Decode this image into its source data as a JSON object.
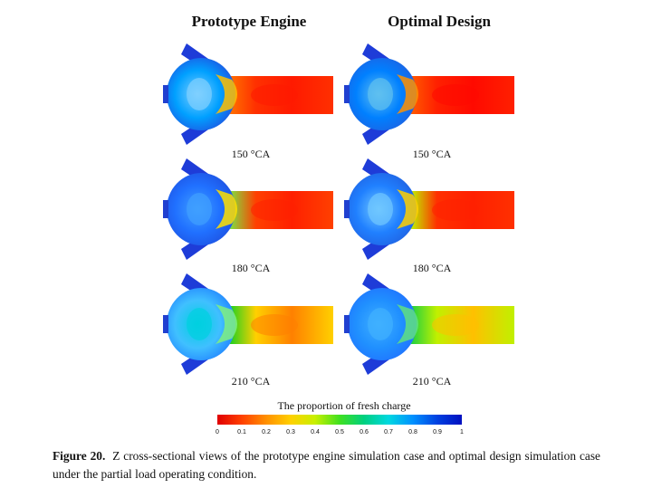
{
  "columns": {
    "left_title": "Prototype Engine",
    "right_title": "Optimal Design"
  },
  "rows": [
    {
      "angle": "150 °CA"
    },
    {
      "angle": "180 °CA"
    },
    {
      "angle": "210 °CA"
    }
  ],
  "legend": {
    "title": "The proportion of fresh charge",
    "ticks": [
      "0",
      "0.1",
      "0.2",
      "0.3",
      "0.4",
      "0.5",
      "0.6",
      "0.7",
      "0.8",
      "0.9",
      "1"
    ],
    "colors": [
      "#e00000",
      "#ff4000",
      "#ff9000",
      "#ffd000",
      "#c8f000",
      "#40e020",
      "#00d080",
      "#00d8e0",
      "#0090ff",
      "#0040e0",
      "#0010c0"
    ]
  },
  "caption": {
    "label": "Figure 20.",
    "text": "Z cross-sectional views of the prototype engine simulation case and optimal design simulation case under the partial load operating condition."
  }
}
